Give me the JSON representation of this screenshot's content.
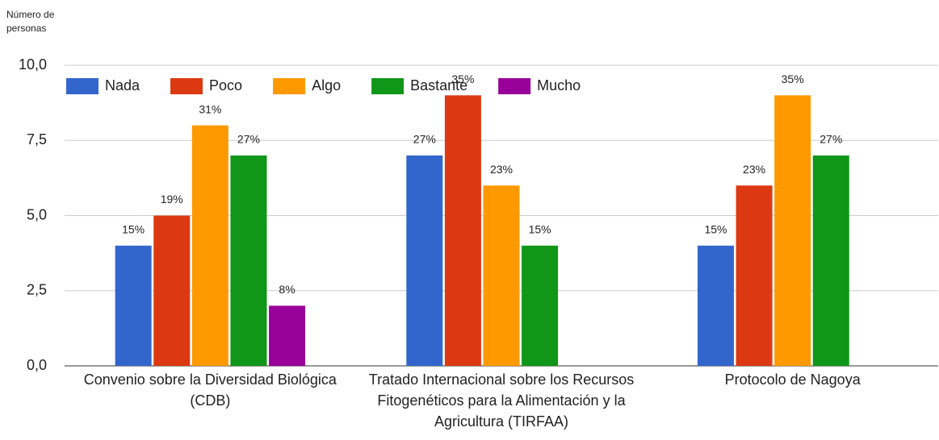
{
  "chart_data": {
    "type": "bar",
    "y_label": "Número de personas",
    "categories": [
      "Convenio sobre la Diversidad Biológica (CDB)",
      "Tratado Internacional sobre los Recursos Fitogenéticos para la Alimentación y la Agricultura (TIRFAA)",
      "Protocolo de Nagoya"
    ],
    "series": [
      {
        "name": "Nada",
        "color": "#3366cc",
        "values": [
          4,
          7,
          4
        ],
        "value_labels": [
          "15%",
          "27%",
          "15%"
        ]
      },
      {
        "name": "Poco",
        "color": "#dc3912",
        "values": [
          5,
          9,
          6
        ],
        "value_labels": [
          "19%",
          "35%",
          "23%"
        ]
      },
      {
        "name": "Algo",
        "color": "#ff9900",
        "values": [
          8,
          6,
          9
        ],
        "value_labels": [
          "31%",
          "23%",
          "35%"
        ]
      },
      {
        "name": "Bastante",
        "color": "#109618",
        "values": [
          7,
          4,
          7
        ],
        "value_labels": [
          "27%",
          "15%",
          "27%"
        ]
      },
      {
        "name": "Mucho",
        "color": "#990099",
        "values": [
          2,
          null,
          null
        ],
        "value_labels": [
          "8%",
          null,
          null
        ]
      }
    ],
    "ylim": [
      0,
      10
    ],
    "yticks": [
      {
        "value": 0,
        "label": "0,0"
      },
      {
        "value": 2.5,
        "label": "2,5"
      },
      {
        "value": 5,
        "label": "5,0"
      },
      {
        "value": 7.5,
        "label": "7,5"
      },
      {
        "value": 10,
        "label": "10,0"
      }
    ],
    "grid": true,
    "legend": "top-left"
  }
}
